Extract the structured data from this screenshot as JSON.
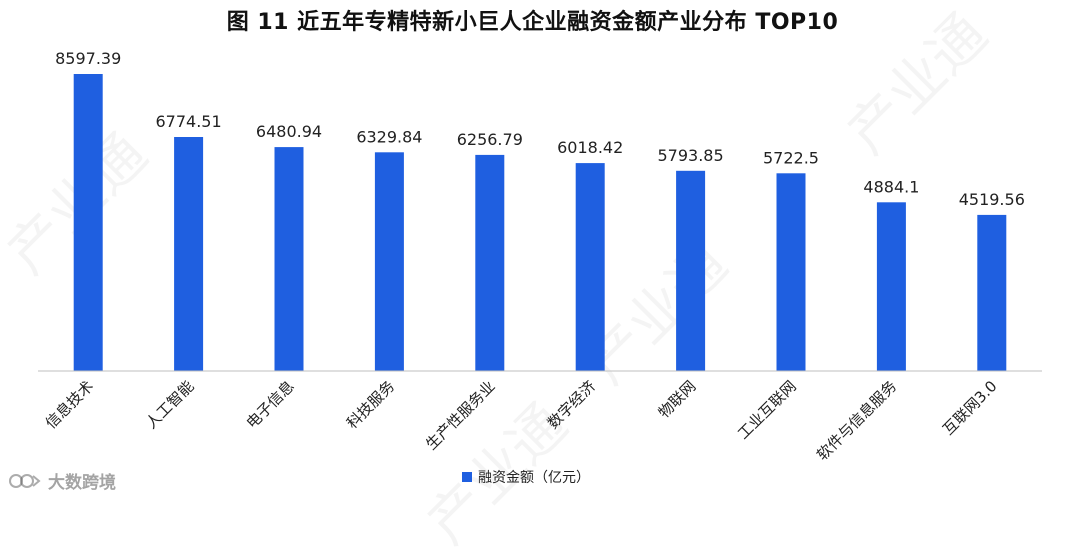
{
  "title": "图 11  近五年专精特新小巨人企业融资金额产业分布 TOP10",
  "watermark": "产业通",
  "brand": "大数跨境",
  "colors": {
    "bar": "#1f5fe0",
    "axis": "#bfbfbf",
    "text": "#222222"
  },
  "chart_data": {
    "type": "bar",
    "title": "图 11  近五年专精特新小巨人企业融资金额产业分布 TOP10",
    "categories": [
      "信息技术",
      "人工智能",
      "电子信息",
      "科技服务",
      "生产性服务业",
      "数字经济",
      "物联网",
      "工业互联网",
      "软件与信息服务",
      "互联网3.0"
    ],
    "series": [
      {
        "name": "融资金额（亿元）",
        "values": [
          8597.39,
          6774.51,
          6480.94,
          6329.84,
          6256.79,
          6018.42,
          5793.85,
          5722.5,
          4884.1,
          4519.56
        ],
        "labels": [
          "8597.39",
          "6774.51",
          "6480.94",
          "6329.84",
          "6256.79",
          "6018.42",
          "5793.85",
          "5722.5",
          "4884.1",
          "4519.56"
        ]
      }
    ],
    "ylim": [
      0,
      8597.39
    ],
    "grid": false,
    "legend_position": "bottom"
  }
}
